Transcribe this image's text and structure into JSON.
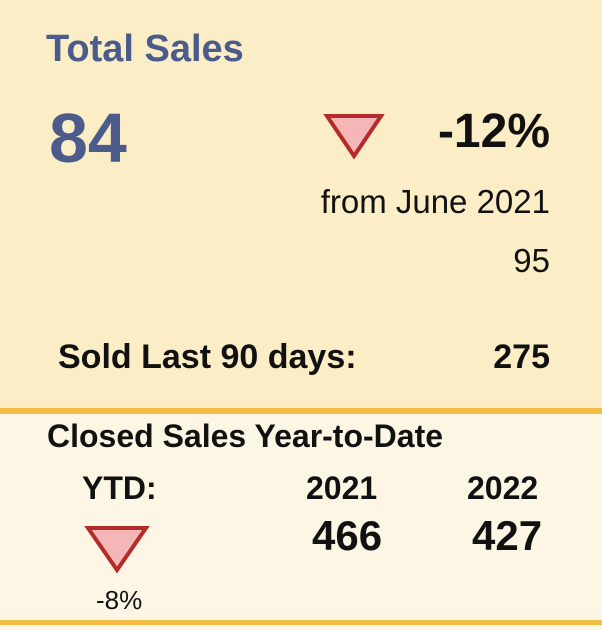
{
  "total_sales": {
    "title": "Total Sales",
    "current_value": "84",
    "change_percent": "-12%",
    "compare_label": "from June 2021",
    "previous_value": "95",
    "trend": "down-triangle-icon",
    "sold_label": "Sold Last 90 days:",
    "sold_value": "275"
  },
  "ytd": {
    "title": "Closed Sales Year-to-Date",
    "label": "YTD:",
    "year_1": "2021",
    "year_2": "2022",
    "value_1": "466",
    "value_2": "427",
    "change_percent": "-8%",
    "trend": "down-triangle-icon"
  },
  "colors": {
    "accent": "#4b5b8c",
    "divider": "#f2be45",
    "top_background": "#fbedc5",
    "bottom_background": "#fdf6e4",
    "down_fill": "#f4b6b6",
    "down_stroke": "#b52a2a"
  }
}
